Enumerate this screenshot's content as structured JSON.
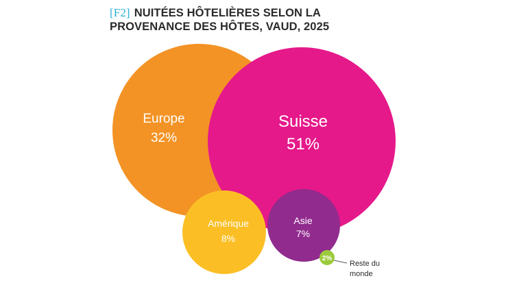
{
  "header": {
    "tag": "[F2]",
    "title_line1": "NUITÉES HÔTELIÈRES SELON LA",
    "title_line2": "PROVENANCE DES HÔTES, VAUD, 2025"
  },
  "chart_data": {
    "type": "bubble",
    "title": "[F2] NUITÉES HÔTELIÈRES SELON LA PROVENANCE DES HÔTES, VAUD, 2025",
    "unit": "%",
    "items": [
      {
        "label": "Europe",
        "value": 32,
        "display": "32%",
        "color": "#f39325"
      },
      {
        "label": "Suisse",
        "value": 51,
        "display": "51%",
        "color": "#e5198a"
      },
      {
        "label": "Amérique",
        "value": 8,
        "display": "8%",
        "color": "#fbbf25"
      },
      {
        "label": "Asie",
        "value": 7,
        "display": "7%",
        "color": "#912b8e"
      },
      {
        "label": "Reste du monde",
        "label_line1": "Reste du",
        "label_line2": "monde",
        "value": 2,
        "display": "2%",
        "color": "#9bcb3c"
      }
    ]
  }
}
